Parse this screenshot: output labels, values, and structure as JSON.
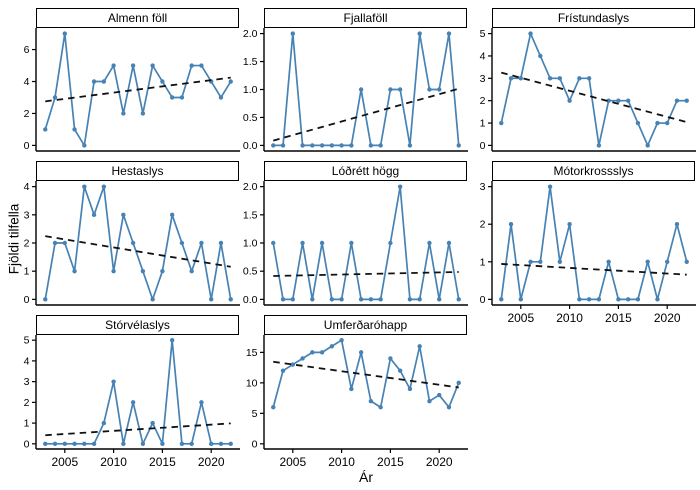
{
  "figure": {
    "background": "#ffffff",
    "series_color": "#4682B4",
    "trend_color": "#111111",
    "axis_color": "#000000",
    "text_color": "#000000"
  },
  "chart_data": {
    "type": "line",
    "layout": "facet_wrap 3 columns, 8 panels, free y scales, no gridlines, dashed linear trend per panel",
    "title": "",
    "xlabel": "Ár",
    "ylabel": "Fjöldi tilfella",
    "x": [
      2003,
      2004,
      2005,
      2006,
      2007,
      2008,
      2009,
      2010,
      2011,
      2012,
      2013,
      2014,
      2015,
      2016,
      2017,
      2018,
      2019,
      2020,
      2021,
      2022
    ],
    "x_ticks": [
      2005,
      2010,
      2015,
      2020
    ],
    "x_tick_labels": [
      "2005",
      "2010",
      "2015",
      "2020"
    ],
    "xlim": [
      2002.05,
      2022.95
    ],
    "trend": "OLS linear fit, black dashed, drawn over data range",
    "panels": [
      {
        "title": "Almenn föll",
        "slug": "almenn-foll",
        "values": [
          1,
          3,
          7,
          1,
          0,
          4,
          4,
          5,
          2,
          5,
          2,
          5,
          4,
          3,
          3,
          5,
          5,
          4,
          3,
          4
        ],
        "ymax": 7,
        "y_ticks": [
          0,
          2,
          4,
          6
        ],
        "y_tick_labels": [
          "0",
          "2",
          "4",
          "6"
        ]
      },
      {
        "title": "Fjallaföll",
        "slug": "fjallafoll",
        "values": [
          0,
          0,
          2,
          0,
          0,
          0,
          0,
          0,
          0,
          1,
          0,
          0,
          1,
          1,
          0,
          2,
          1,
          1,
          2,
          0
        ],
        "ymax": 2,
        "y_ticks": [
          0,
          0.5,
          1,
          1.5,
          2
        ],
        "y_tick_labels": [
          "0.0",
          "0.5",
          "1.0",
          "1.5",
          "2.0"
        ]
      },
      {
        "title": "Frístundaslys",
        "slug": "fristundaslys",
        "values": [
          1,
          3,
          3,
          5,
          4,
          3,
          3,
          2,
          3,
          3,
          0,
          2,
          2,
          2,
          1,
          0,
          1,
          1,
          2,
          2
        ],
        "ymax": 5,
        "y_ticks": [
          0,
          1,
          2,
          3,
          4,
          5
        ],
        "y_tick_labels": [
          "0",
          "1",
          "2",
          "3",
          "4",
          "5"
        ]
      },
      {
        "title": "Hestaslys",
        "slug": "hestaslys",
        "values": [
          0,
          2,
          2,
          1,
          4,
          3,
          4,
          1,
          3,
          2,
          1,
          0,
          1,
          3,
          2,
          1,
          2,
          0,
          2,
          0
        ],
        "ymax": 4,
        "y_ticks": [
          0,
          1,
          2,
          3,
          4
        ],
        "y_tick_labels": [
          "0",
          "1",
          "2",
          "3",
          "4"
        ]
      },
      {
        "title": "Lóðrétt högg",
        "slug": "lodrett-hogg",
        "values": [
          1,
          0,
          0,
          1,
          0,
          1,
          0,
          0,
          1,
          0,
          0,
          0,
          1,
          2,
          0,
          0,
          1,
          0,
          1,
          0
        ],
        "ymax": 2,
        "y_ticks": [
          0,
          0.5,
          1,
          1.5,
          2
        ],
        "y_tick_labels": [
          "0.0",
          "0.5",
          "1.0",
          "1.5",
          "2.0"
        ]
      },
      {
        "title": "Mótorkrossslys",
        "slug": "motorkrossslys",
        "values": [
          0,
          2,
          0,
          1,
          1,
          3,
          1,
          2,
          0,
          0,
          0,
          1,
          0,
          0,
          0,
          1,
          0,
          1,
          2,
          1
        ],
        "ymax": 3,
        "y_ticks": [
          0,
          1,
          2,
          3
        ],
        "y_tick_labels": [
          "0",
          "1",
          "2",
          "3"
        ]
      },
      {
        "title": "Stórvélaslys",
        "slug": "storvelaslys",
        "values": [
          0,
          0,
          0,
          0,
          0,
          0,
          1,
          3,
          0,
          2,
          0,
          1,
          0,
          5,
          0,
          0,
          2,
          0,
          0,
          0
        ],
        "ymax": 5,
        "y_ticks": [
          0,
          1,
          2,
          3,
          4,
          5
        ],
        "y_tick_labels": [
          "0",
          "1",
          "2",
          "3",
          "4",
          "5"
        ]
      },
      {
        "title": "Umferðaróhapp",
        "slug": "umferdarohapp",
        "values": [
          6,
          12,
          13,
          14,
          15,
          15,
          16,
          17,
          9,
          15,
          7,
          6,
          14,
          12,
          9,
          16,
          7,
          8,
          6,
          10
        ],
        "ymax": 17,
        "y_ticks": [
          0,
          5,
          10,
          15
        ],
        "y_tick_labels": [
          "0",
          "5",
          "10",
          "15"
        ]
      }
    ]
  }
}
